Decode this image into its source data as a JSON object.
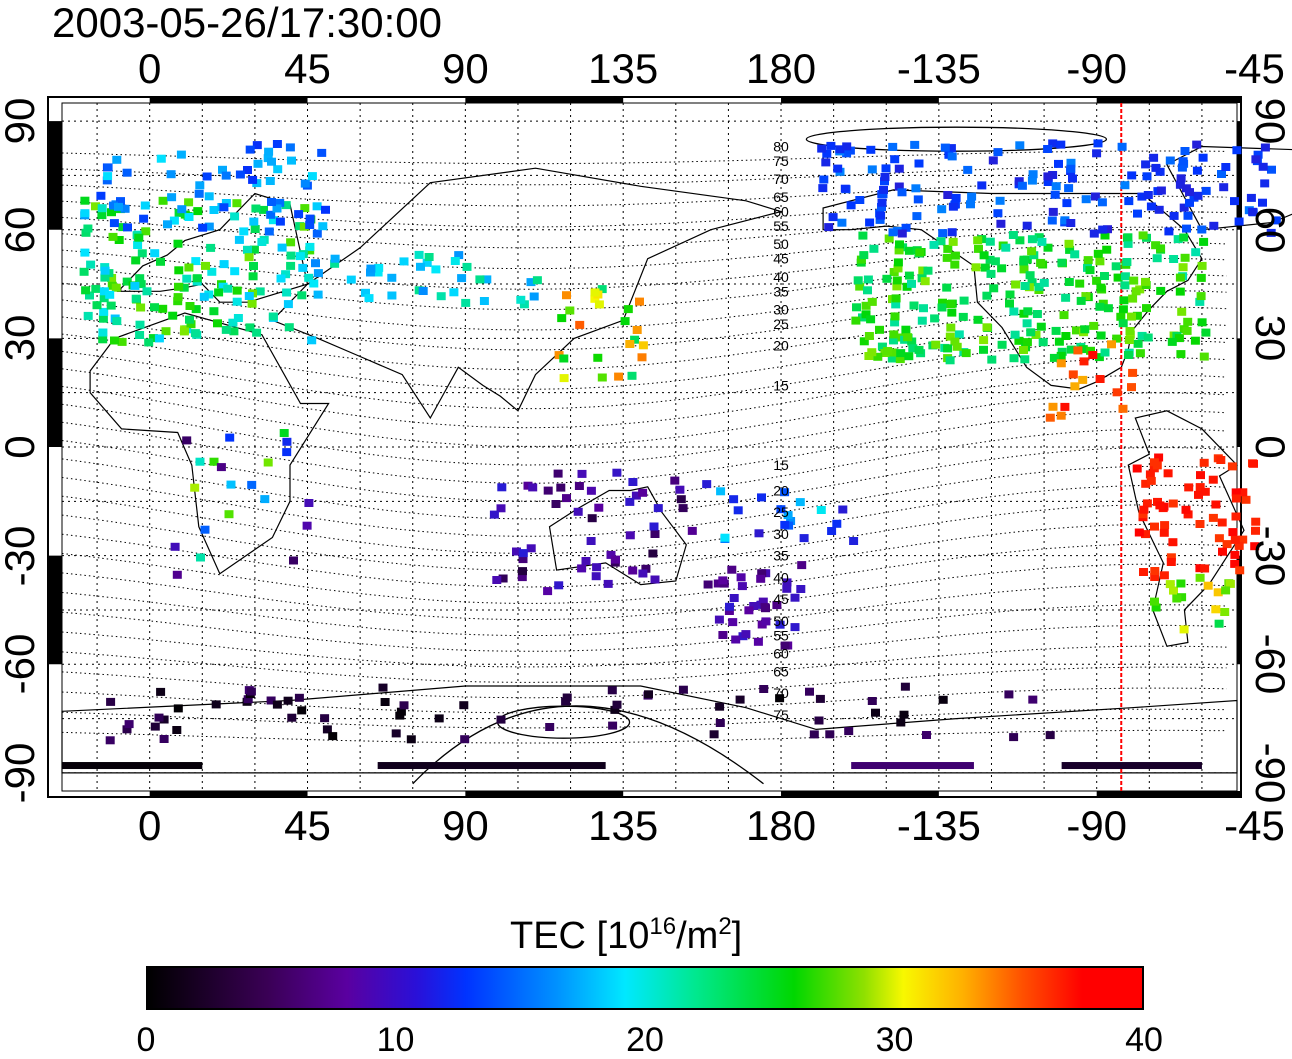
{
  "title": "2003-05-26/17:30:00",
  "map": {
    "lon_ticks_top": [
      "0",
      "45",
      "90",
      "135",
      "180",
      "-135",
      "-90",
      "-45"
    ],
    "lon_ticks_bottom": [
      "0",
      "45",
      "90",
      "135",
      "180",
      "-135",
      "-90",
      "-45"
    ],
    "lat_ticks_left": [
      "90",
      "60",
      "30",
      "0",
      "-30",
      "-60",
      "-90"
    ],
    "lat_ticks_right": [
      "90",
      "60",
      "30",
      "0",
      "-30",
      "-60",
      "-90"
    ],
    "lon_ticks_values": [
      0,
      45,
      90,
      135,
      180,
      225,
      270,
      315
    ],
    "lat_ticks_values": [
      90,
      60,
      30,
      0,
      -30,
      -60,
      -90
    ],
    "lon_range": [
      -25,
      310
    ],
    "lat_range": [
      -95,
      95
    ],
    "grid": true,
    "grid_style": "dotted",
    "contour_labels_north": [
      "80",
      "75",
      "70",
      "65",
      "60",
      "55",
      "50",
      "45",
      "40",
      "35",
      "30",
      "25",
      "20",
      "15"
    ],
    "contour_labels_south": [
      "15",
      "20",
      "25",
      "30",
      "35",
      "40",
      "45",
      "50",
      "55",
      "60",
      "65",
      "70",
      "75"
    ],
    "contour_labels_north_lat": [
      83,
      79,
      74,
      69,
      65,
      61,
      56,
      52,
      47,
      43,
      38,
      34,
      28,
      17
    ],
    "contour_labels_south_lat": [
      -5,
      -12,
      -18,
      -24,
      -30,
      -36,
      -42,
      -48,
      -52,
      -57,
      -62,
      -68,
      -74
    ],
    "terminator_longitude": 277,
    "terminator_color": "#ff0000"
  },
  "colorbar": {
    "title_main": "TEC  [10",
    "title_sup1": "16",
    "title_mid": "/m",
    "title_sup2": "2",
    "title_end": "]",
    "ticks": [
      "0",
      "10",
      "20",
      "30",
      "40"
    ],
    "tick_values": [
      0,
      10,
      20,
      30,
      40
    ],
    "min": 0,
    "max": 40,
    "colors": [
      "#000000",
      "#5a00a0",
      "#0033ff",
      "#00e8ff",
      "#00d700",
      "#f8f800",
      "#ff5000",
      "#ff0000"
    ]
  }
}
